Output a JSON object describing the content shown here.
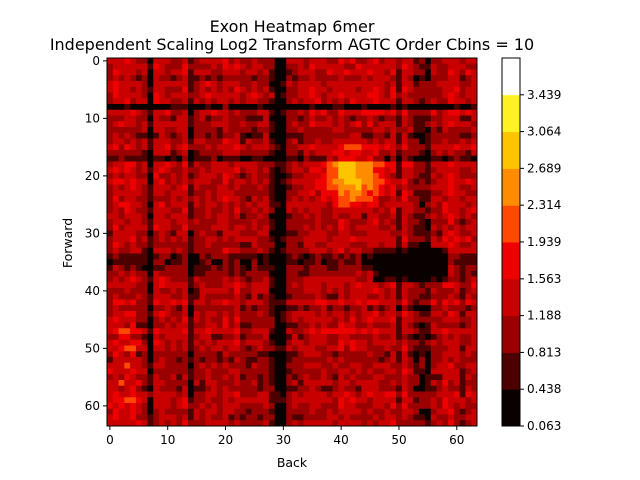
{
  "chart_data": {
    "type": "heatmap",
    "title": "Exon Heatmap 6mer",
    "subtitle": "Independent Scaling Log2 Transform AGTC Order Cbins = 10",
    "xlabel": "Back",
    "ylabel": "Forward",
    "grid_size": [
      64,
      64
    ],
    "xlim": [
      0,
      63
    ],
    "ylim": [
      0,
      63
    ],
    "x_ticks": [
      "0",
      "10",
      "20",
      "30",
      "40",
      "50",
      "60"
    ],
    "y_ticks": [
      "0",
      "10",
      "20",
      "30",
      "40",
      "50",
      "60"
    ],
    "y_axis_inverted": true,
    "grid": false,
    "colormap": "hot",
    "colorbar": {
      "min": 0.063,
      "max": 3.814,
      "bins": 10,
      "tick_labels": [
        "0.063",
        "0.438",
        "0.813",
        "1.188",
        "1.563",
        "1.939",
        "2.314",
        "2.689",
        "3.064",
        "3.439"
      ],
      "colors": [
        "#0b0000",
        "#4d0000",
        "#9a0000",
        "#c80000",
        "#ee0000",
        "#ff4800",
        "#ff8c00",
        "#ffc400",
        "#fff222",
        "#ffff88",
        "#ffffff"
      ]
    },
    "values_summary": "64x64 matrix of log2-scaled values, mostly 0.8-1.6 (red), dark bands near Back 7, 14, 28-30, 50-55 and Forward 8, 13, 17, 34-36; bright peak near Back 42, Forward 20"
  }
}
